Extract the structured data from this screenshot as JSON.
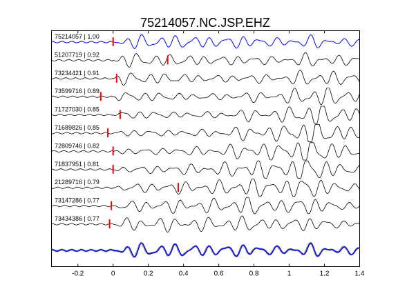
{
  "chart_data": {
    "type": "line",
    "title": "75214057.NC.JSP.EHZ",
    "xlim": [
      -0.35,
      1.4
    ],
    "x_ticks": [
      -0.2,
      0,
      0.2,
      0.4,
      0.6,
      0.8,
      1,
      1.2,
      1.4
    ],
    "x_tick_labels": [
      "-0.2",
      "0",
      "0.2",
      "0.4",
      "0.6",
      "0.8",
      "1",
      "1.2",
      "1.4"
    ],
    "grid": false,
    "legend": "none",
    "colors": {
      "reference_trace": "#0000ff",
      "trace": "#000000",
      "pick": "#ff0000",
      "stack_traces": "#808080",
      "axes": "#000000"
    },
    "traces": [
      {
        "id": "75214057",
        "cc": "1.00",
        "label": "75214057 | 1.00",
        "pick_time": 0.0,
        "reference": true
      },
      {
        "id": "51207719",
        "cc": "0.92",
        "label": "51207719 | 0.92",
        "pick_time": 0.31
      },
      {
        "id": "73234421",
        "cc": "0.91",
        "label": "73234421 | 0.91",
        "pick_time": 0.02
      },
      {
        "id": "73599716",
        "cc": "0.89",
        "label": "73599716 | 0.89",
        "pick_time": -0.07
      },
      {
        "id": "71727030",
        "cc": "0.85",
        "label": "71727030 | 0.85",
        "pick_time": 0.04
      },
      {
        "id": "71689826",
        "cc": "0.85",
        "label": "71689826 | 0.85",
        "pick_time": -0.03
      },
      {
        "id": "72809746",
        "cc": "0.82",
        "label": "72809746 | 0.82",
        "pick_time": 0.0
      },
      {
        "id": "71837951",
        "cc": "0.81",
        "label": "71837951 | 0.81",
        "pick_time": 0.0
      },
      {
        "id": "21289716",
        "cc": "0.79",
        "label": "21289716 | 0.79",
        "pick_time": 0.37
      },
      {
        "id": "73147286",
        "cc": "0.77",
        "label": "73147286 | 0.77",
        "pick_time": -0.01
      },
      {
        "id": "73434386",
        "cc": "0.77",
        "label": "73434386 | 0.77",
        "pick_time": -0.02
      }
    ],
    "stack": {
      "description_visible": false,
      "reference_color": "#0000ff",
      "overlay_color": "#808080"
    }
  }
}
